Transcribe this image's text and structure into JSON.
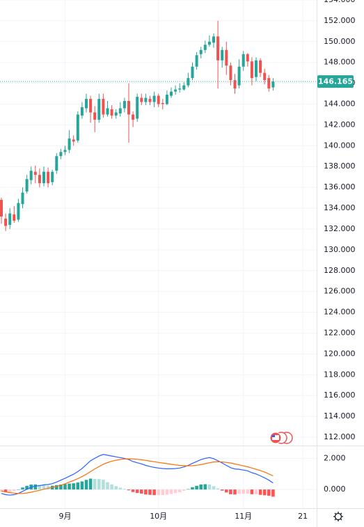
{
  "chart_data": [
    {
      "type": "candlestick",
      "categories": [
        null,
        null,
        null,
        null,
        null,
        null,
        null,
        null,
        null,
        null,
        null,
        null,
        null,
        null,
        null,
        "9月",
        null,
        null,
        null,
        null,
        null,
        null,
        null,
        null,
        null,
        null,
        null,
        null,
        null,
        null,
        null,
        null,
        null,
        null,
        null,
        null,
        null,
        "10月",
        null,
        null,
        null,
        null,
        null,
        null,
        null,
        null,
        null,
        null,
        null,
        null,
        null,
        null,
        null,
        null,
        null,
        null,
        null,
        "11月",
        null,
        null,
        null,
        null,
        null,
        null,
        null,
        null,
        null,
        null,
        null,
        null,
        null,
        "21"
      ],
      "open": [
        134.8,
        133,
        132.4,
        133.4,
        132.9,
        134.4,
        135.6,
        136.7,
        137.5,
        137.2,
        136.4,
        137.5,
        136.5,
        137.6,
        139,
        139.4,
        139.6,
        140.6,
        140.5,
        142.9,
        143.6,
        144.5,
        143.2,
        142.5,
        144.5,
        143,
        143.5,
        142.9,
        143.1,
        143.6,
        144.3,
        143,
        142.6,
        144.6,
        144.2,
        144.5,
        144.2,
        144.8,
        144.1,
        144,
        144.8,
        145.2,
        145.4,
        145.4,
        145.8,
        146.5,
        147.6,
        148.8,
        149.2,
        149.7,
        149.9,
        150.5,
        148.2,
        149.2,
        147.7,
        146.3,
        145.8,
        147.6,
        148.8,
        148.1,
        146.6,
        148.2,
        147,
        146.5,
        145.6,
        null,
        null,
        null,
        null,
        null,
        null,
        null
      ],
      "high": [
        135,
        133.5,
        134,
        134.2,
        134.9,
        136,
        137.2,
        138,
        138.1,
        137.8,
        138,
        137.9,
        137.7,
        139.3,
        139.7,
        140,
        141.5,
        141,
        143.3,
        144.2,
        145,
        144.8,
        143.8,
        145,
        145,
        144.3,
        143.9,
        143.5,
        144.2,
        144.6,
        146,
        143.3,
        145,
        145,
        145,
        144.8,
        145.2,
        145,
        144.5,
        145.3,
        145.6,
        145.8,
        146,
        146.1,
        147,
        148,
        149,
        149.5,
        150.1,
        150.6,
        150.8,
        152,
        149.5,
        150,
        148,
        146.9,
        148.3,
        149.1,
        148.9,
        148.5,
        148.5,
        148.4,
        147.4,
        146.8,
        146.5,
        null,
        null,
        null,
        null,
        null,
        null,
        null
      ],
      "low": [
        132.5,
        131.8,
        132,
        132.6,
        132.7,
        134,
        135.4,
        136.3,
        136.4,
        136,
        136.1,
        136,
        136.2,
        137.3,
        138.7,
        139.1,
        139.3,
        140,
        140.3,
        142.6,
        143.2,
        142.2,
        141.3,
        142.2,
        142.7,
        142.8,
        142.6,
        142.6,
        142.8,
        143.2,
        140.3,
        141.8,
        142.3,
        143.9,
        143.9,
        143.9,
        143.7,
        143.7,
        143.5,
        143.9,
        144.6,
        144.9,
        145.1,
        145.3,
        145.6,
        146.3,
        147.3,
        148.4,
        148.9,
        149.5,
        149.4,
        145.5,
        147.5,
        146.8,
        145.8,
        145,
        145.5,
        147.2,
        147.6,
        145.8,
        146.2,
        146.6,
        145.9,
        145.2,
        145.3,
        null,
        null,
        null,
        null,
        null,
        null,
        null
      ],
      "close": [
        133.2,
        132.3,
        133.5,
        132.8,
        134.5,
        135.5,
        136.8,
        137.6,
        137.2,
        136.4,
        137.5,
        136.4,
        137.5,
        139,
        139.4,
        139.6,
        140.7,
        140.4,
        143,
        143.7,
        144.5,
        143.2,
        142.5,
        144.5,
        143,
        143.6,
        142.9,
        143.2,
        143.6,
        144.3,
        143,
        142.5,
        144.7,
        144.2,
        144.6,
        144.2,
        144.8,
        144,
        144,
        144.9,
        145.2,
        145.4,
        145.5,
        145.8,
        146.5,
        147.6,
        148.7,
        149.2,
        149.7,
        150,
        150.5,
        148.2,
        149.2,
        147.7,
        146.3,
        145.5,
        147.6,
        148.8,
        148.1,
        146.5,
        148.2,
        147,
        146.3,
        145.5,
        146.165,
        null,
        null,
        null,
        null,
        null,
        null,
        null
      ],
      "up_color": "#26a69a",
      "down_color": "#ef5350",
      "ylim": [
        111.2,
        154.1
      ],
      "yticks": [
        {
          "value": 112,
          "label": "112.000"
        },
        {
          "value": 114,
          "label": "114.000"
        },
        {
          "value": 116,
          "label": "116.000"
        },
        {
          "value": 118,
          "label": "118.000"
        },
        {
          "value": 120,
          "label": "120.000"
        },
        {
          "value": 122,
          "label": "122.000"
        },
        {
          "value": 124,
          "label": "124.000"
        },
        {
          "value": 126,
          "label": "126.000"
        },
        {
          "value": 128,
          "label": "128.000"
        },
        {
          "value": 130,
          "label": "130.000"
        },
        {
          "value": 132,
          "label": "132.000"
        },
        {
          "value": 134,
          "label": "134.000"
        },
        {
          "value": 136,
          "label": "136.000"
        },
        {
          "value": 138,
          "label": "138.000"
        },
        {
          "value": 140,
          "label": "140.000"
        },
        {
          "value": 142,
          "label": "142.000"
        },
        {
          "value": 144,
          "label": "144.000"
        },
        {
          "value": 146,
          "label": "146.000"
        },
        {
          "value": 148,
          "label": "148.000"
        },
        {
          "value": 150,
          "label": "150.000"
        },
        {
          "value": 152,
          "label": "152.000"
        },
        {
          "value": 154,
          "label": "154.000"
        }
      ],
      "grid": true
    },
    {
      "type": "macd",
      "macd": [
        -0.25,
        -0.33,
        -0.36,
        -0.33,
        -0.25,
        -0.12,
        0.02,
        0.15,
        0.22,
        0.25,
        0.3,
        0.32,
        0.38,
        0.48,
        0.6,
        0.72,
        0.85,
        0.98,
        1.15,
        1.35,
        1.6,
        1.85,
        2.0,
        2.15,
        2.25,
        2.2,
        2.15,
        2.1,
        2.05,
        2.0,
        1.92,
        1.8,
        1.72,
        1.65,
        1.55,
        1.48,
        1.42,
        1.38,
        1.35,
        1.33,
        1.33,
        1.35,
        1.38,
        1.45,
        1.55,
        1.68,
        1.8,
        1.92,
        2.0,
        2.05,
        1.98,
        1.85,
        1.7,
        1.55,
        1.4,
        1.32,
        1.3,
        1.25,
        1.2,
        1.08,
        1.0,
        0.88,
        0.75,
        0.6,
        0.42,
        null,
        null,
        null,
        null,
        null,
        null,
        null
      ],
      "signal": [
        -0.1,
        -0.15,
        -0.2,
        -0.23,
        -0.25,
        -0.25,
        -0.22,
        -0.17,
        -0.11,
        -0.05,
        0.02,
        0.08,
        0.14,
        0.2,
        0.28,
        0.37,
        0.47,
        0.58,
        0.7,
        0.83,
        0.98,
        1.15,
        1.32,
        1.48,
        1.62,
        1.73,
        1.82,
        1.88,
        1.93,
        1.96,
        1.97,
        1.96,
        1.94,
        1.91,
        1.87,
        1.82,
        1.78,
        1.74,
        1.7,
        1.66,
        1.62,
        1.58,
        1.55,
        1.53,
        1.52,
        1.53,
        1.56,
        1.6,
        1.66,
        1.72,
        1.77,
        1.78,
        1.77,
        1.74,
        1.7,
        1.64,
        1.58,
        1.52,
        1.46,
        1.38,
        1.3,
        1.22,
        1.12,
        1.0,
        0.88,
        null,
        null,
        null,
        null,
        null,
        null,
        null
      ],
      "histogram": [
        -0.15,
        -0.18,
        -0.16,
        -0.1,
        0.0,
        0.13,
        0.24,
        0.32,
        0.33,
        0.3,
        0.28,
        0.24,
        0.24,
        0.28,
        0.32,
        0.35,
        0.38,
        0.4,
        0.45,
        0.52,
        0.62,
        0.7,
        0.68,
        0.67,
        0.63,
        0.47,
        0.33,
        0.22,
        0.12,
        0.04,
        -0.05,
        -0.16,
        -0.22,
        -0.26,
        -0.32,
        -0.34,
        -0.36,
        -0.36,
        -0.35,
        -0.33,
        -0.29,
        -0.23,
        -0.17,
        -0.08,
        0.03,
        0.15,
        0.24,
        0.32,
        0.34,
        0.33,
        0.21,
        0.07,
        -0.07,
        -0.19,
        -0.3,
        -0.32,
        -0.28,
        -0.27,
        -0.26,
        -0.3,
        -0.3,
        -0.34,
        -0.37,
        -0.4,
        -0.46,
        null,
        null,
        null,
        null,
        null,
        null,
        null
      ],
      "macd_color": "#2962ff",
      "signal_color": "#ff6d00",
      "hist_colors": [
        "#26a69a",
        "#b2dfdb",
        "#ffcdd2",
        "#ff5252"
      ],
      "ylim": [
        -1.2,
        2.6
      ],
      "yticks": [
        {
          "value": 0,
          "label": "0.000"
        },
        {
          "value": 2,
          "label": "2.000"
        }
      ],
      "grid": true
    }
  ]
}
